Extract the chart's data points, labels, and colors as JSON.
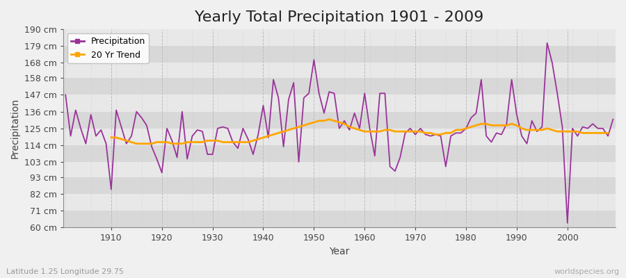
{
  "title": "Yearly Total Precipitation 1901 - 2009",
  "xlabel": "Year",
  "ylabel": "Precipitation",
  "subtitle": "Latitude 1.25 Longitude 29.75",
  "watermark": "worldspecies.org",
  "years": [
    1901,
    1902,
    1903,
    1904,
    1905,
    1906,
    1907,
    1908,
    1909,
    1910,
    1911,
    1912,
    1913,
    1914,
    1915,
    1916,
    1917,
    1918,
    1919,
    1920,
    1921,
    1922,
    1923,
    1924,
    1925,
    1926,
    1927,
    1928,
    1929,
    1930,
    1931,
    1932,
    1933,
    1934,
    1935,
    1936,
    1937,
    1938,
    1939,
    1940,
    1941,
    1942,
    1943,
    1944,
    1945,
    1946,
    1947,
    1948,
    1949,
    1950,
    1951,
    1952,
    1953,
    1954,
    1955,
    1956,
    1957,
    1958,
    1959,
    1960,
    1961,
    1962,
    1963,
    1964,
    1965,
    1966,
    1967,
    1968,
    1969,
    1970,
    1971,
    1972,
    1973,
    1974,
    1975,
    1976,
    1977,
    1978,
    1979,
    1980,
    1981,
    1982,
    1983,
    1984,
    1985,
    1986,
    1987,
    1988,
    1989,
    1990,
    1991,
    1992,
    1993,
    1994,
    1995,
    1996,
    1997,
    1998,
    1999,
    2000,
    2001,
    2002,
    2003,
    2004,
    2005,
    2006,
    2007,
    2008,
    2009
  ],
  "precip": [
    147,
    120,
    137,
    125,
    115,
    134,
    120,
    124,
    115,
    85,
    137,
    126,
    115,
    120,
    136,
    132,
    127,
    113,
    105,
    96,
    125,
    117,
    106,
    136,
    105,
    120,
    124,
    123,
    108,
    108,
    125,
    126,
    125,
    116,
    112,
    125,
    118,
    108,
    121,
    140,
    119,
    157,
    145,
    113,
    144,
    155,
    103,
    145,
    148,
    170,
    148,
    135,
    149,
    148,
    125,
    130,
    124,
    135,
    125,
    148,
    125,
    107,
    148,
    148,
    100,
    97,
    106,
    122,
    125,
    121,
    125,
    121,
    120,
    121,
    120,
    100,
    120,
    122,
    122,
    125,
    132,
    135,
    157,
    120,
    116,
    122,
    121,
    128,
    157,
    134,
    120,
    115,
    130,
    123,
    126,
    181,
    168,
    148,
    126,
    63,
    125,
    120,
    126,
    125,
    128,
    125,
    125,
    120,
    131
  ],
  "trend": [
    null,
    null,
    null,
    null,
    null,
    null,
    null,
    null,
    null,
    119,
    119,
    118,
    117,
    116,
    115,
    115,
    115,
    115,
    116,
    116,
    116,
    115,
    115,
    115,
    116,
    116,
    116,
    116,
    117,
    117,
    117,
    116,
    116,
    116,
    116,
    116,
    116,
    117,
    118,
    119,
    120,
    121,
    122,
    123,
    124,
    125,
    126,
    127,
    128,
    129,
    130,
    130,
    131,
    130,
    129,
    128,
    126,
    125,
    124,
    123,
    123,
    123,
    123,
    124,
    124,
    123,
    123,
    123,
    123,
    123,
    123,
    122,
    122,
    121,
    121,
    122,
    122,
    124,
    124,
    125,
    126,
    127,
    128,
    128,
    127,
    127,
    127,
    127,
    128,
    127,
    125,
    124,
    124,
    124,
    124,
    125,
    124,
    123,
    123,
    123,
    123,
    123,
    122,
    122,
    122,
    122,
    122,
    122,
    null
  ],
  "precip_color": "#993399",
  "trend_color": "#FFA500",
  "band_colors": [
    "#d8d8d8",
    "#e8e8e8"
  ],
  "vgrid_color": "#bbbbbb",
  "ylim": [
    60,
    190
  ],
  "yticks": [
    60,
    71,
    82,
    93,
    103,
    114,
    125,
    136,
    147,
    158,
    168,
    179,
    190
  ],
  "ytick_labels": [
    "60 cm",
    "71 cm",
    "82 cm",
    "93 cm",
    "103 cm",
    "114 cm",
    "125 cm",
    "136 cm",
    "147 cm",
    "158 cm",
    "168 cm",
    "179 cm",
    "190 cm"
  ],
  "xticks": [
    1910,
    1920,
    1930,
    1940,
    1950,
    1960,
    1970,
    1980,
    1990,
    2000
  ],
  "title_fontsize": 16,
  "axis_label_fontsize": 10,
  "tick_fontsize": 9,
  "legend_fontsize": 9
}
